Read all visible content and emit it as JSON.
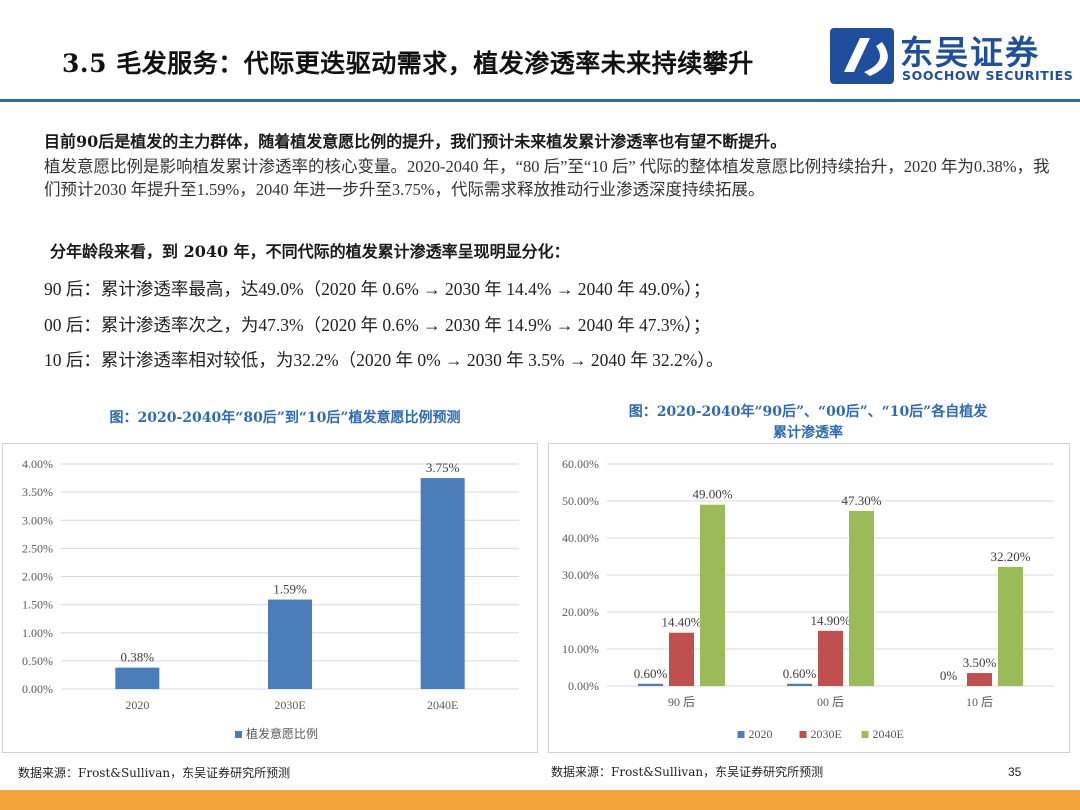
{
  "header": {
    "title": "3.5 毛发服务：代际更迭驱动需求，植发渗透率未来持续攀升",
    "logo_cn": "东吴证券",
    "logo_en": "SOOCHOW SECURITIES"
  },
  "body": {
    "lead": "目前90后是植发的主力群体，随着植发意愿比例的提升，我们预计未来植发累计渗透率也有望不断提升。",
    "paragraph": "植发意愿比例是影响植发累计渗透率的核心变量。2020-2040 年，“80 后”至“10 后” 代际的整体植发意愿比例持续抬升，2020 年为0.38%，我们预计2030 年提升至1.59%，2040 年进一步升至3.75%，代际需求释放推动行业渗透深度持续拓展。",
    "subhead": "分年龄段来看，到 2040 年，不同代际的植发累计渗透率呈现明显分化：",
    "rows": [
      "90 后：累计渗透率最高，达49.0%（2020 年 0.6% → 2030 年 14.4% → 2040 年 49.0%）；",
      "00 后：累计渗透率次之，为47.3%（2020 年 0.6% → 2030 年 14.9% → 2040 年 47.3%）；",
      "10 后：累计渗透率相对较低，为32.2%（2020 年 0% → 2030 年 3.5% → 2040 年 32.2%）。"
    ]
  },
  "charts": {
    "left_title": "图：2020-2040年“80后”到“10后”植发意愿比例预测",
    "right_title_line1": "图：2020-2040年“90后”、“00后”、“10后”各自植发",
    "right_title_line2": "累计渗透率",
    "left_source": "数据来源：Frost&Sullivan，东吴证券研究所预测",
    "right_source": "数据来源：Frost&Sullivan，东吴证券研究所预测"
  },
  "chart_data": [
    {
      "type": "bar",
      "categories": [
        "2020",
        "2030E",
        "2040E"
      ],
      "series": [
        {
          "name": "植发意愿比例",
          "values": [
            0.38,
            1.59,
            3.75
          ],
          "labels": [
            "0.38%",
            "1.59%",
            "3.75%"
          ],
          "color": "#4a7ebb"
        }
      ],
      "ylim": [
        0,
        4
      ],
      "yticks": [
        "0.00%",
        "0.50%",
        "1.00%",
        "1.50%",
        "2.00%",
        "2.50%",
        "3.00%",
        "3.50%",
        "4.00%"
      ],
      "legend": "bottom"
    },
    {
      "type": "bar",
      "categories": [
        "90 后",
        "00 后",
        "10 后"
      ],
      "series": [
        {
          "name": "2020",
          "values": [
            0.6,
            0.6,
            0
          ],
          "labels": [
            "0.60%",
            "0.60%",
            "0%"
          ],
          "color": "#4a7ebb"
        },
        {
          "name": "2030E",
          "values": [
            14.4,
            14.9,
            3.5
          ],
          "labels": [
            "14.40%",
            "14.90%",
            "3.50%"
          ],
          "color": "#c0504d"
        },
        {
          "name": "2040E",
          "values": [
            49.0,
            47.3,
            32.2
          ],
          "labels": [
            "49.00%",
            "47.30%",
            "32.20%"
          ],
          "color": "#9bbb59"
        }
      ],
      "ylim": [
        0,
        60
      ],
      "yticks": [
        "0.00%",
        "10.00%",
        "20.00%",
        "30.00%",
        "40.00%",
        "50.00%",
        "60.00%"
      ],
      "legend": "bottom"
    }
  ],
  "footer": {
    "page_number": "35"
  },
  "colors": {
    "accent": "#2e6ab3",
    "footer_bar": "#f3a43a"
  }
}
